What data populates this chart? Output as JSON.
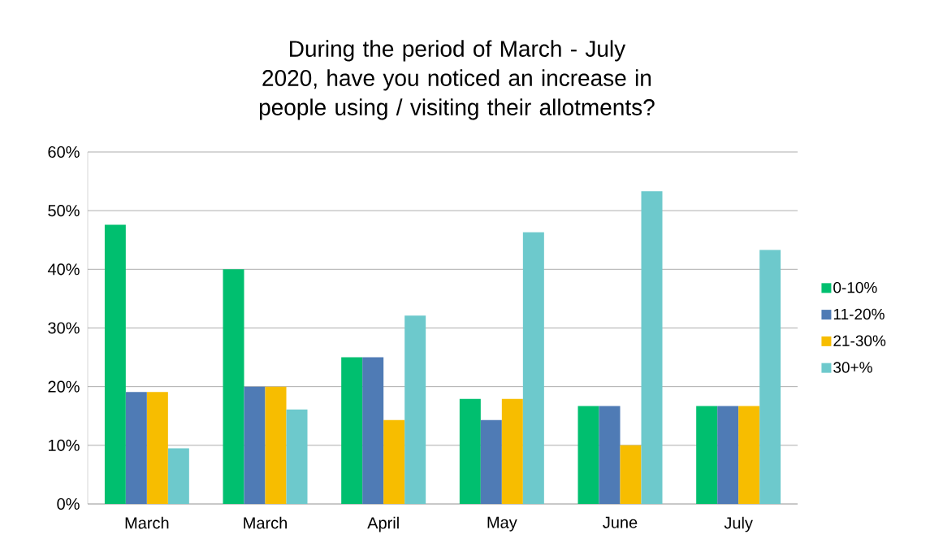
{
  "chart_data": {
    "type": "bar",
    "title": "During the period of March - July 2020, have you noticed an increase in people using / visiting their allotments?",
    "categories": [
      "March",
      "March",
      "April",
      "May",
      "June",
      "July"
    ],
    "series": [
      {
        "name": "0-10%",
        "color": "#00bf6f",
        "values": [
          47.6,
          40,
          25,
          17.9,
          16.7,
          16.7
        ]
      },
      {
        "name": "11-20%",
        "color": "#4f7bb5",
        "values": [
          19.1,
          20,
          25,
          14.3,
          16.7,
          16.7
        ]
      },
      {
        "name": "21-30%",
        "color": "#f7bd00",
        "values": [
          19.1,
          20,
          14.3,
          17.9,
          10,
          16.7
        ]
      },
      {
        "name": "30+%",
        "color": "#6dc9cc",
        "values": [
          9.5,
          16.1,
          32.1,
          46.3,
          53.3,
          43.3
        ]
      }
    ],
    "ylim": [
      0,
      60
    ],
    "yticks": [
      {
        "value": 0,
        "label": "0%"
      },
      {
        "value": 10,
        "label": "10%"
      },
      {
        "value": 20,
        "label": "20%"
      },
      {
        "value": 30,
        "label": "30%"
      },
      {
        "value": 40,
        "label": "40%"
      },
      {
        "value": 50,
        "label": "50%"
      },
      {
        "value": 60,
        "label": "60%"
      }
    ],
    "grid": "y",
    "legend": "right"
  }
}
